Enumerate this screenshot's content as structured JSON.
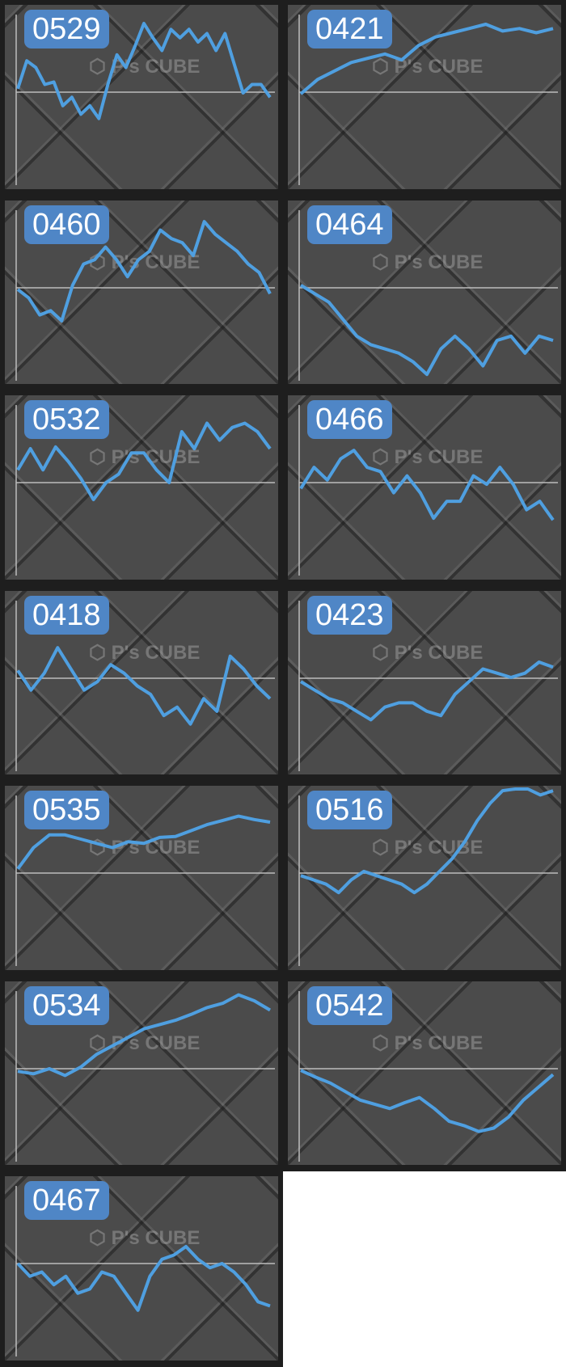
{
  "colors": {
    "line": "#4f9fe0",
    "label_bg": "#4f86c6",
    "axis": "#bdbdbd"
  },
  "watermark": "P's CUBE",
  "chart_data": [
    {
      "type": "line",
      "title": "0529",
      "values": [
        4,
        37,
        29,
        9,
        12,
        -16,
        -6,
        -26,
        -16,
        -31,
        9,
        44,
        29,
        54,
        81,
        64,
        49,
        74,
        64,
        74,
        59,
        69,
        49,
        69,
        34,
        -1,
        9,
        9,
        -6
      ]
    },
    {
      "type": "line",
      "title": "0421",
      "values": [
        -2,
        15,
        25,
        35,
        40,
        45,
        38,
        55,
        65,
        70,
        75,
        80,
        72,
        75,
        70,
        75
      ]
    },
    {
      "type": "line",
      "title": "0460",
      "values": [
        -2,
        -12,
        -32,
        -27,
        -39,
        3,
        28,
        33,
        48,
        33,
        13,
        33,
        43,
        68,
        58,
        53,
        38,
        78,
        63,
        53,
        43,
        28,
        18,
        -7
      ]
    },
    {
      "type": "line",
      "title": "0464",
      "values": [
        3,
        -7,
        -17,
        -37,
        -57,
        -67,
        -72,
        -77,
        -87,
        -102,
        -72,
        -57,
        -72,
        -92,
        -62,
        -57,
        -77,
        -57,
        -62
      ]
    },
    {
      "type": "line",
      "title": "0532",
      "values": [
        15,
        40,
        15,
        42,
        25,
        5,
        -20,
        0,
        10,
        35,
        35,
        15,
        0,
        60,
        40,
        70,
        50,
        65,
        70,
        60,
        40
      ]
    },
    {
      "type": "line",
      "title": "0466",
      "values": [
        -7,
        18,
        3,
        28,
        38,
        18,
        13,
        -12,
        8,
        -12,
        -42,
        -22,
        -22,
        8,
        -2,
        18,
        -2,
        -32,
        -22,
        -44
      ]
    },
    {
      "type": "line",
      "title": "0418",
      "values": [
        9,
        -14,
        6,
        36,
        11,
        -14,
        -4,
        16,
        6,
        -9,
        -19,
        -44,
        -34,
        -54,
        -24,
        -39,
        26,
        11,
        -9,
        -24
      ]
    },
    {
      "type": "line",
      "title": "0423",
      "values": [
        -4,
        -14,
        -24,
        -29,
        -39,
        -49,
        -34,
        -29,
        -29,
        -39,
        -44,
        -19,
        -4,
        11,
        6,
        1,
        6,
        19,
        13
      ]
    },
    {
      "type": "line",
      "title": "0535",
      "values": [
        5,
        30,
        45,
        45,
        40,
        35,
        30,
        37,
        35,
        42,
        43,
        50,
        57,
        62,
        67,
        63,
        60
      ]
    },
    {
      "type": "line",
      "title": "0516",
      "values": [
        -3,
        -8,
        -13,
        -23,
        -8,
        2,
        -3,
        -8,
        -13,
        -23,
        -13,
        2,
        17,
        37,
        62,
        82,
        97,
        99,
        99,
        92,
        97
      ]
    },
    {
      "type": "line",
      "title": "0534",
      "values": [
        -3,
        -6,
        0,
        -8,
        2,
        17,
        27,
        37,
        47,
        52,
        57,
        64,
        72,
        77,
        87,
        80,
        69
      ]
    },
    {
      "type": "line",
      "title": "0542",
      "values": [
        -2,
        -10,
        -17,
        -27,
        -37,
        -42,
        -47,
        -40,
        -34,
        -47,
        -62,
        -67,
        -74,
        -70,
        -57,
        -37,
        -22,
        -7
      ]
    },
    {
      "type": "line",
      "title": "0467",
      "values": [
        0,
        -15,
        -10,
        -25,
        -15,
        -35,
        -30,
        -10,
        -15,
        -35,
        -55,
        -15,
        5,
        10,
        20,
        5,
        -5,
        0,
        -10,
        -25,
        -45,
        -50
      ]
    }
  ]
}
